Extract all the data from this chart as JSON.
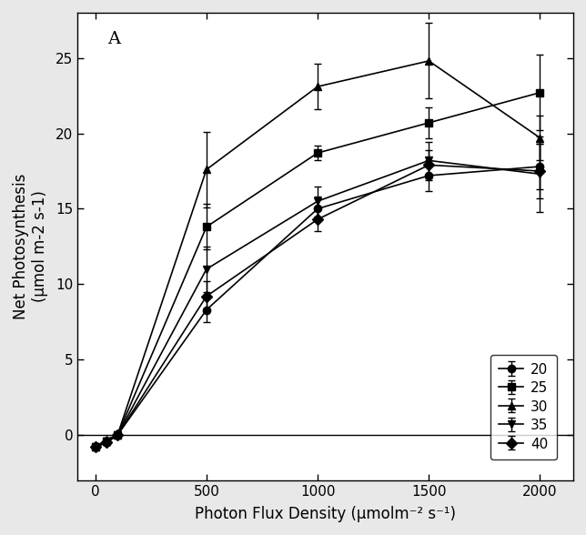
{
  "title": "A",
  "xlabel": "Photon Flux Density (μmolm⁻² s⁻¹)",
  "ylabel_line1": "Net Photosynthesis",
  "ylabel_line2": "(μmol m-2 s-1)",
  "x": [
    0,
    50,
    100,
    500,
    1000,
    1500,
    2000
  ],
  "series": {
    "20": {
      "y": [
        -0.8,
        -0.5,
        0.0,
        8.3,
        15.0,
        17.2,
        17.8
      ],
      "yerr": [
        0.15,
        0.15,
        0.15,
        0.8,
        0.8,
        1.0,
        1.5
      ],
      "marker": "o",
      "label": "20"
    },
    "25": {
      "y": [
        -0.8,
        -0.4,
        0.0,
        13.8,
        18.7,
        20.7,
        22.7
      ],
      "yerr": [
        0.15,
        0.15,
        0.15,
        1.5,
        0.5,
        1.0,
        2.5
      ],
      "marker": "s",
      "label": "25"
    },
    "30": {
      "y": [
        -0.8,
        -0.3,
        0.0,
        17.6,
        23.1,
        24.8,
        19.7
      ],
      "yerr": [
        0.15,
        0.15,
        0.15,
        2.5,
        1.5,
        2.5,
        1.5
      ],
      "marker": "^",
      "label": "30"
    },
    "35": {
      "y": [
        -0.8,
        -0.4,
        0.0,
        11.0,
        15.5,
        18.2,
        17.3
      ],
      "yerr": [
        0.15,
        0.15,
        0.15,
        1.5,
        1.0,
        1.2,
        2.5
      ],
      "marker": "v",
      "label": "35"
    },
    "40": {
      "y": [
        -0.8,
        -0.5,
        0.0,
        9.2,
        14.3,
        17.9,
        17.5
      ],
      "yerr": [
        0.15,
        0.15,
        0.15,
        1.0,
        0.8,
        1.0,
        1.8
      ],
      "marker": "D",
      "label": "40"
    }
  },
  "xlim": [
    -80,
    2150
  ],
  "ylim": [
    -3,
    28
  ],
  "yticks": [
    0,
    5,
    10,
    15,
    20,
    25
  ],
  "xticks": [
    0,
    500,
    1000,
    1500,
    2000
  ],
  "line_color": "black",
  "marker_size": 6,
  "linewidth": 1.2,
  "capsize": 3,
  "elinewidth": 1.0,
  "outer_bg": "#e8e8e8",
  "inner_bg": "#ffffff"
}
